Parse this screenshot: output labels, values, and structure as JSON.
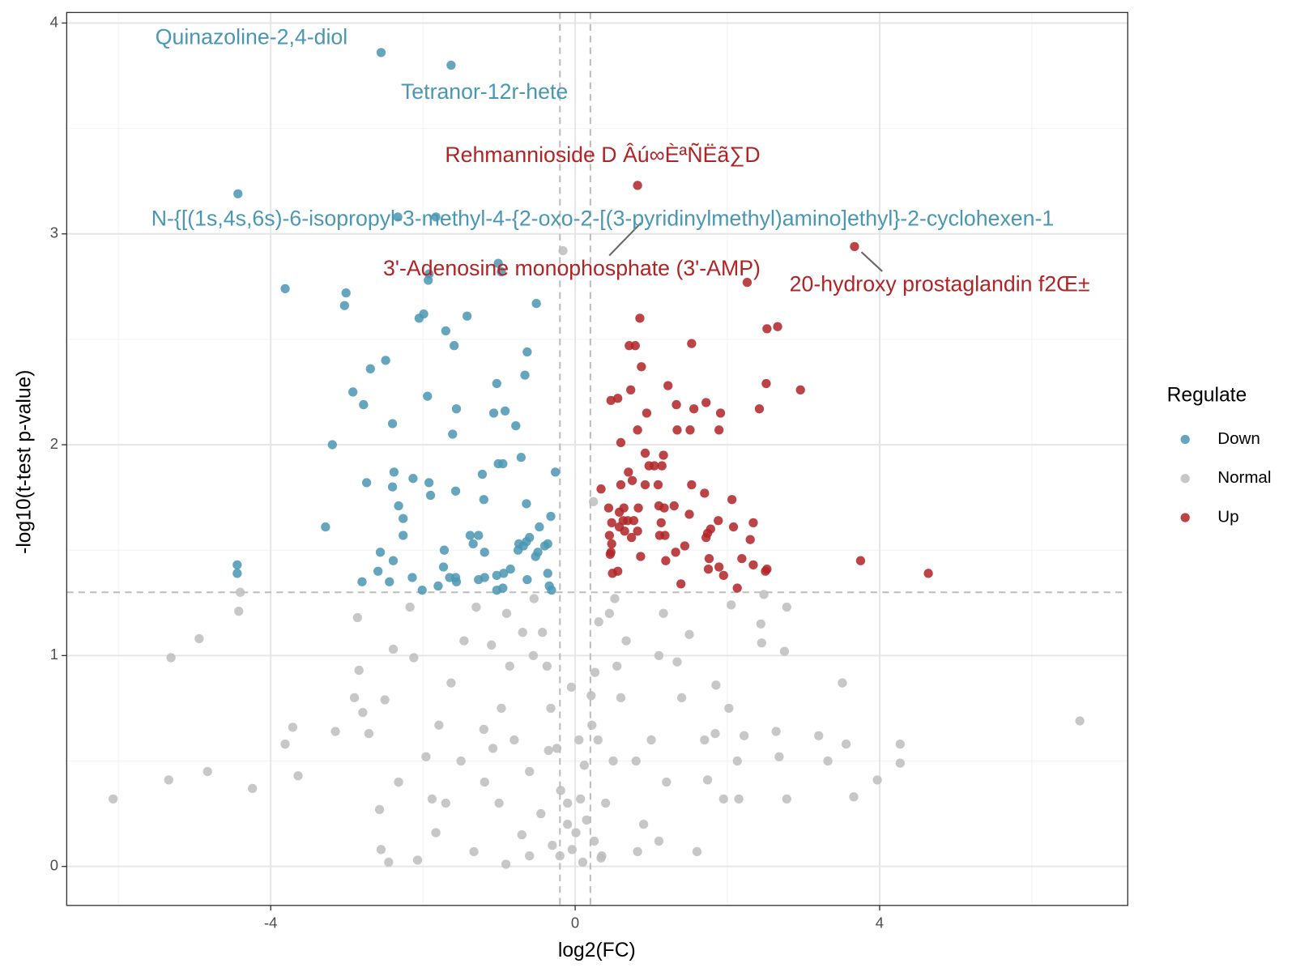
{
  "chart_data": {
    "type": "scatter",
    "xlabel": "log2(FC)",
    "ylabel": "-log10(t-test p-value)",
    "xlim": [
      -6.68,
      7.26
    ],
    "ylim": [
      -0.185,
      4.05
    ],
    "xticks": [
      -4,
      0,
      4
    ],
    "yticks": [
      0,
      1,
      2,
      3,
      4
    ],
    "grid": true,
    "vlines": [
      -0.2,
      0.2
    ],
    "hlines": [
      1.3
    ],
    "legend_title": "Regulate",
    "legend": "right",
    "series": [
      {
        "name": "Down",
        "color": "#4a97b3",
        "x": [
          -2.55,
          -1.63,
          -4.43,
          -2.33,
          -1.83,
          -3.81,
          -3.01,
          -3.03,
          -1.01,
          -0.97,
          -1.92,
          -1.93,
          -0.51,
          -1.99,
          -2.05,
          -1.42,
          -1.7,
          -1.59,
          -0.63,
          -2.49,
          -2.69,
          -0.66,
          -2.92,
          -1.03,
          -1.94,
          -2.78,
          -1.56,
          -1.07,
          -0.92,
          -2.4,
          -0.78,
          -1.61,
          -3.19,
          -0.71,
          -1.01,
          -0.95,
          -2.38,
          -0.26,
          -1.22,
          -2.74,
          -2.13,
          -2.4,
          -1.92,
          -1.57,
          -1.9,
          -1.2,
          -2.32,
          -0.64,
          -2.26,
          -3.28,
          -0.32,
          -2.26,
          -1.38,
          -1.27,
          -0.47,
          -0.6,
          -0.64,
          -1.34,
          -0.74,
          -0.36,
          -0.4,
          -0.68,
          -1.72,
          -2.56,
          -1.19,
          -0.75,
          -0.49,
          -0.52,
          -2.39,
          -4.44,
          -4.44,
          -2.59,
          -1.73,
          -0.85,
          -0.36,
          -0.94,
          -1.03,
          -1.65,
          -1.57,
          -1.19,
          -1.27,
          -2.14,
          -2.8,
          -2.44,
          -0.63,
          -1.56,
          -0.34,
          -0.31,
          -1.8,
          -2.01,
          -1.03,
          -0.95
        ],
        "values": [
          3.86,
          3.8,
          3.19,
          3.08,
          3.08,
          2.74,
          2.72,
          2.66,
          2.86,
          2.82,
          2.81,
          2.78,
          2.67,
          2.62,
          2.6,
          2.61,
          2.54,
          2.47,
          2.44,
          2.4,
          2.36,
          2.33,
          2.25,
          2.29,
          2.23,
          2.19,
          2.17,
          2.15,
          2.16,
          2.1,
          2.09,
          2.05,
          2.0,
          1.94,
          1.91,
          1.91,
          1.87,
          1.87,
          1.86,
          1.82,
          1.84,
          1.8,
          1.82,
          1.78,
          1.76,
          1.74,
          1.71,
          1.72,
          1.65,
          1.61,
          1.66,
          1.57,
          1.57,
          1.57,
          1.61,
          1.56,
          1.54,
          1.53,
          1.53,
          1.53,
          1.52,
          1.52,
          1.5,
          1.49,
          1.49,
          1.5,
          1.49,
          1.47,
          1.45,
          1.43,
          1.39,
          1.4,
          1.42,
          1.41,
          1.39,
          1.39,
          1.38,
          1.37,
          1.37,
          1.37,
          1.36,
          1.37,
          1.35,
          1.35,
          1.36,
          1.35,
          1.33,
          1.31,
          1.33,
          1.31,
          1.31,
          1.32
        ]
      },
      {
        "name": "Normal",
        "color": "#bdbdbd",
        "x": [
          -6.07,
          -5.34,
          -5.31,
          -4.94,
          -4.83,
          -4.24,
          -4.4,
          -4.42,
          -3.71,
          -3.64,
          -3.81,
          -3.15,
          -2.86,
          -2.84,
          -2.9,
          -2.79,
          -2.71,
          -2.57,
          -2.55,
          -2.45,
          -2.32,
          -2.07,
          -1.83,
          -1.88,
          -1.33,
          -0.91,
          -0.16,
          0.24,
          6.63,
          3.51,
          4.27,
          4.27,
          3.97,
          3.66,
          3.56,
          3.32,
          3.2,
          2.78,
          2.75,
          2.78,
          2.64,
          2.68,
          2.48,
          2.44,
          2.45,
          2.22,
          2.13,
          2.15,
          1.95,
          2.05,
          2.02,
          1.84,
          1.85,
          1.74,
          1.6,
          1.5,
          1.34,
          1.16,
          1.1,
          0.82,
          0.34,
          0.67,
          0.52,
          0.31,
          0.26,
          0.21,
          0.22,
          0.12,
          0.07,
          0.01,
          -0.04,
          -0.1,
          -0.19,
          -0.24,
          -0.32,
          -0.37,
          -0.43,
          -0.54,
          -0.69,
          -0.86,
          -0.97,
          -1.08,
          -1.19,
          -1.3,
          -1.46,
          -1.63,
          -1.79,
          -1.96,
          -2.17,
          -2.12,
          -2.39,
          -2.5,
          -0.3,
          -0.2,
          0.1,
          0.25,
          -0.45,
          0.4,
          0.15,
          -0.1,
          0.5,
          -0.6,
          0.3,
          -0.35,
          0.6,
          -0.8,
          0.8,
          -1.0,
          1.0,
          0.9,
          -0.7,
          -1.2,
          1.2,
          0.55,
          -0.55,
          0.45,
          -0.9,
          1.4,
          -1.5,
          1.7,
          -1.7,
          0.05,
          -0.05,
          0.35,
          -0.6,
          1.1,
          -1.1
        ],
        "values": [
          0.32,
          0.41,
          0.99,
          1.08,
          0.45,
          0.37,
          1.3,
          1.21,
          0.66,
          0.43,
          0.58,
          0.64,
          1.18,
          0.93,
          0.8,
          0.73,
          0.63,
          0.27,
          0.08,
          0.02,
          0.4,
          0.03,
          0.16,
          0.32,
          0.07,
          0.01,
          2.92,
          1.73,
          0.69,
          0.87,
          0.58,
          0.49,
          0.41,
          0.33,
          0.58,
          0.5,
          0.62,
          0.32,
          1.02,
          1.23,
          0.64,
          0.52,
          1.29,
          1.15,
          1.06,
          0.62,
          0.5,
          0.32,
          0.32,
          1.24,
          0.75,
          0.63,
          0.86,
          0.41,
          0.07,
          1.1,
          0.97,
          1.2,
          0.12,
          0.07,
          0.04,
          1.07,
          1.27,
          1.16,
          0.92,
          0.81,
          0.67,
          0.48,
          0.32,
          0.16,
          0.08,
          0.2,
          0.36,
          0.56,
          0.75,
          0.95,
          1.11,
          1.27,
          1.11,
          0.95,
          0.75,
          0.56,
          0.4,
          1.23,
          1.07,
          0.87,
          0.67,
          0.52,
          1.23,
          0.99,
          1.03,
          0.79,
          0.1,
          0.05,
          0.02,
          0.12,
          0.25,
          0.3,
          0.22,
          0.3,
          0.5,
          0.45,
          0.6,
          0.55,
          0.8,
          0.6,
          0.5,
          0.3,
          0.6,
          0.2,
          0.15,
          0.65,
          0.4,
          0.95,
          1.0,
          1.2,
          1.2,
          0.8,
          0.5,
          0.6,
          0.3,
          0.6,
          0.85,
          0.05,
          0.05,
          1.0,
          1.05
        ]
      },
      {
        "name": "Up",
        "color": "#b22326",
        "x": [
          0.82,
          3.67,
          2.26,
          0.85,
          2.66,
          2.52,
          0.71,
          0.79,
          1.53,
          0.87,
          2.51,
          0.73,
          1.22,
          2.96,
          0.56,
          0.47,
          1.33,
          1.72,
          1.56,
          2.42,
          0.94,
          1.91,
          0.6,
          0.82,
          1.34,
          1.51,
          1.89,
          0.92,
          1.16,
          0.97,
          1.04,
          1.14,
          0.7,
          0.92,
          0.6,
          0.75,
          1.53,
          1.09,
          0.34,
          1.7,
          2.06,
          0.64,
          0.83,
          0.44,
          1.1,
          1.3,
          0.58,
          1.17,
          1.5,
          1.88,
          2.34,
          0.63,
          0.69,
          0.77,
          1.13,
          0.48,
          0.58,
          2.08,
          1.78,
          0.65,
          0.82,
          1.74,
          0.45,
          1.11,
          1.18,
          1.72,
          0.74,
          2.3,
          0.48,
          1.44,
          0.47,
          1.32,
          0.86,
          1.76,
          2.19,
          3.75,
          1.19,
          0.46,
          2.34,
          2.52,
          1.75,
          1.89,
          2.5,
          4.64,
          0.56,
          0.49,
          1.95,
          1.39,
          2.13
        ],
        "values": [
          3.23,
          2.94,
          2.77,
          2.6,
          2.56,
          2.55,
          2.47,
          2.47,
          2.48,
          2.37,
          2.29,
          2.26,
          2.28,
          2.26,
          2.22,
          2.21,
          2.19,
          2.2,
          2.17,
          2.17,
          2.15,
          2.15,
          2.01,
          2.07,
          2.07,
          2.07,
          2.07,
          1.96,
          1.95,
          1.9,
          1.9,
          1.9,
          1.87,
          1.81,
          1.81,
          1.83,
          1.81,
          1.81,
          1.79,
          1.77,
          1.74,
          1.7,
          1.7,
          1.7,
          1.71,
          1.71,
          1.68,
          1.7,
          1.67,
          1.64,
          1.63,
          1.64,
          1.64,
          1.64,
          1.63,
          1.63,
          1.61,
          1.61,
          1.6,
          1.59,
          1.59,
          1.58,
          1.57,
          1.57,
          1.57,
          1.56,
          1.56,
          1.55,
          1.53,
          1.52,
          1.49,
          1.49,
          1.47,
          1.46,
          1.46,
          1.45,
          1.45,
          1.48,
          1.43,
          1.41,
          1.41,
          1.42,
          1.4,
          1.39,
          1.4,
          1.39,
          1.38,
          1.34,
          1.32
        ]
      }
    ],
    "annotations": [
      {
        "text": "Quinazoline-2,4-diol",
        "color": "#4a97b3"
      },
      {
        "text": "Tetranor-12r-hete",
        "color": "#4a97b3"
      },
      {
        "text": "Rehmannioside D Âú∞ÈªÑËã∑D",
        "color": "#b22326"
      },
      {
        "text": "N-{[(1s,4s,6s)-6-isopropyl-3-methyl-4-{2-oxo-2-[(3-pyridinylmethyl)amino]ethyl}-2-cyclohexen-1",
        "color": "#4a97b3"
      },
      {
        "text": "3'-Adenosine monophosphate (3'-AMP)",
        "color": "#b22326"
      },
      {
        "text": "20-hydroxy prostaglandin f2Œ±",
        "color": "#b22326"
      }
    ]
  }
}
